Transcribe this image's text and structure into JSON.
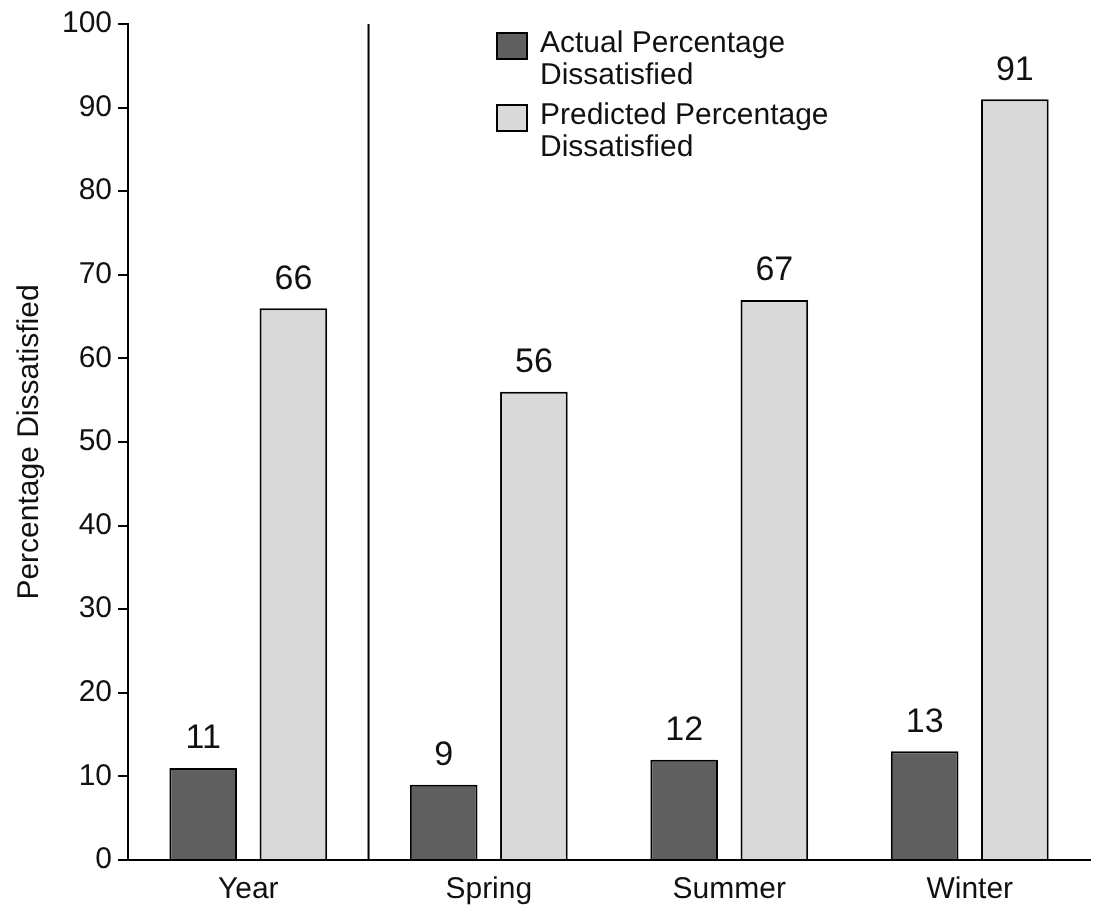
{
  "chart_data": {
    "type": "bar",
    "ylabel": "Percentage Dissatisfied",
    "categories": [
      "Year",
      "Spring",
      "Summer",
      "Winter"
    ],
    "series": [
      {
        "name": "Actual Percentage Dissatisfied",
        "color": "#5f5f5f",
        "values": [
          11,
          9,
          12,
          13
        ]
      },
      {
        "name": "Predicted Percentage Dissatisfied",
        "color": "#d9d9d9",
        "values": [
          66,
          56,
          67,
          91
        ]
      }
    ],
    "ylim": [
      0,
      100
    ],
    "yticks": [
      0,
      10,
      20,
      30,
      40,
      50,
      60,
      70,
      80,
      90,
      100
    ],
    "grid": false,
    "legend": "top right",
    "data_labels": true
  }
}
